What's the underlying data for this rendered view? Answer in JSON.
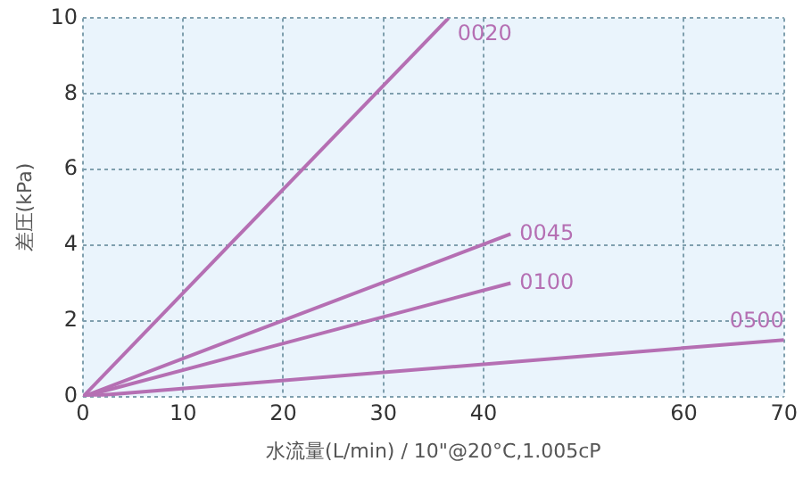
{
  "chart_data": {
    "type": "line",
    "xlabel": "水流量(L/min) / 10\"@20°C,1.005cP",
    "ylabel": "差圧(kPa)",
    "xlim": [
      0,
      70
    ],
    "xticks": [
      0,
      10,
      20,
      30,
      40,
      60,
      70
    ],
    "ylim": [
      0,
      10
    ],
    "yticks": [
      0,
      2,
      4,
      6,
      8,
      10
    ],
    "grid": true,
    "legend": false,
    "marker": "none",
    "line_style": "solid",
    "series": [
      {
        "name": "0020",
        "color": "#b56fb3",
        "x": [
          0,
          36.5
        ],
        "values": [
          0,
          10
        ]
      },
      {
        "name": "0045",
        "color": "#b56fb3",
        "x": [
          0,
          42.7
        ],
        "values": [
          0,
          4.3
        ]
      },
      {
        "name": "0100",
        "color": "#b56fb3",
        "x": [
          0,
          42.7
        ],
        "values": [
          0,
          3.0
        ]
      },
      {
        "name": "0500",
        "color": "#b56fb3",
        "x": [
          0,
          70
        ],
        "values": [
          0,
          1.5
        ]
      }
    ]
  }
}
